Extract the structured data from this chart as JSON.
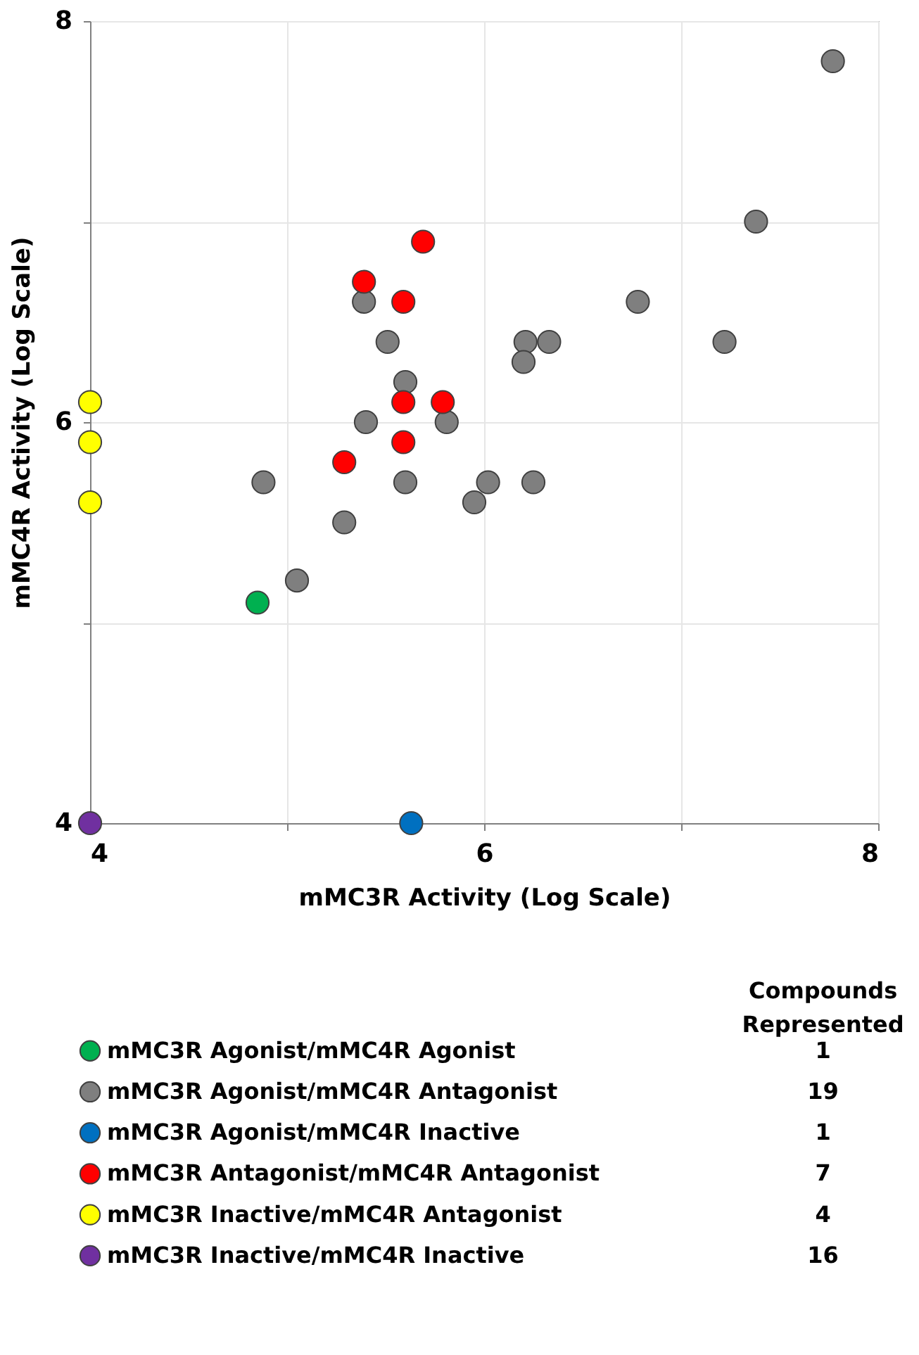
{
  "chart_data": {
    "type": "scatter",
    "xlabel": "mMC3R Activity (Log Scale)",
    "ylabel": "mMC4R Activity (Log Scale)",
    "xlim": [
      4,
      8
    ],
    "ylim": [
      4,
      8
    ],
    "xticks": [
      4,
      {
        "value": 5,
        "label": null
      },
      6,
      {
        "value": 7,
        "label": null
      },
      8
    ],
    "yticks": [
      4,
      {
        "value": 5,
        "label": null
      },
      6,
      {
        "value": 7,
        "label": null
      },
      8
    ],
    "grid": true,
    "marker": "circle",
    "legend": "bottom",
    "legend_title": "Compounds Represented",
    "annotations": [
      "1",
      "19",
      "1",
      "7",
      "4",
      "16"
    ],
    "series": [
      {
        "name": "mMC3R Agonist/mMC4R Agonist",
        "color": "#00b050",
        "x": [
          4.85
        ],
        "values": [
          5.1
        ]
      },
      {
        "name": "mMC3R Agonist/mMC4R Antagonist",
        "color": "#7f7f7f",
        "x": [
          7.77,
          7.38,
          6.78,
          7.22,
          6.21,
          6.33,
          6.2,
          5.6,
          5.81,
          5.6,
          6.02,
          6.25,
          5.95,
          5.39,
          5.51,
          5.4,
          4.88,
          5.29,
          5.05
        ],
        "values": [
          7.8,
          7.0,
          6.6,
          6.4,
          6.4,
          6.4,
          6.3,
          6.2,
          6.0,
          5.7,
          5.7,
          5.7,
          5.6,
          6.6,
          6.4,
          6.0,
          5.7,
          5.5,
          5.21
        ]
      },
      {
        "name": "mMC3R Agonist/mMC4R Inactive",
        "color": "#0070c0",
        "x": [
          5.63
        ],
        "values": [
          4.0
        ]
      },
      {
        "name": "mMC3R Antagonist/mMC4R Antagonist",
        "color": "#ff0000",
        "x": [
          5.69,
          5.39,
          5.59,
          5.59,
          5.79,
          5.59,
          5.29
        ],
        "values": [
          6.9,
          6.7,
          6.6,
          6.1,
          6.1,
          5.9,
          5.8
        ]
      },
      {
        "name": "mMC3R Inactive/mMC4R Antagonist",
        "color": "#ffff00",
        "x": [
          4,
          4,
          4
        ],
        "values": [
          6.1,
          5.9,
          5.6
        ]
      },
      {
        "name": "mMC3R Inactive/mMC4R Inactive",
        "color": "#7030a0",
        "x": [
          4
        ],
        "values": [
          4.0
        ]
      }
    ]
  }
}
